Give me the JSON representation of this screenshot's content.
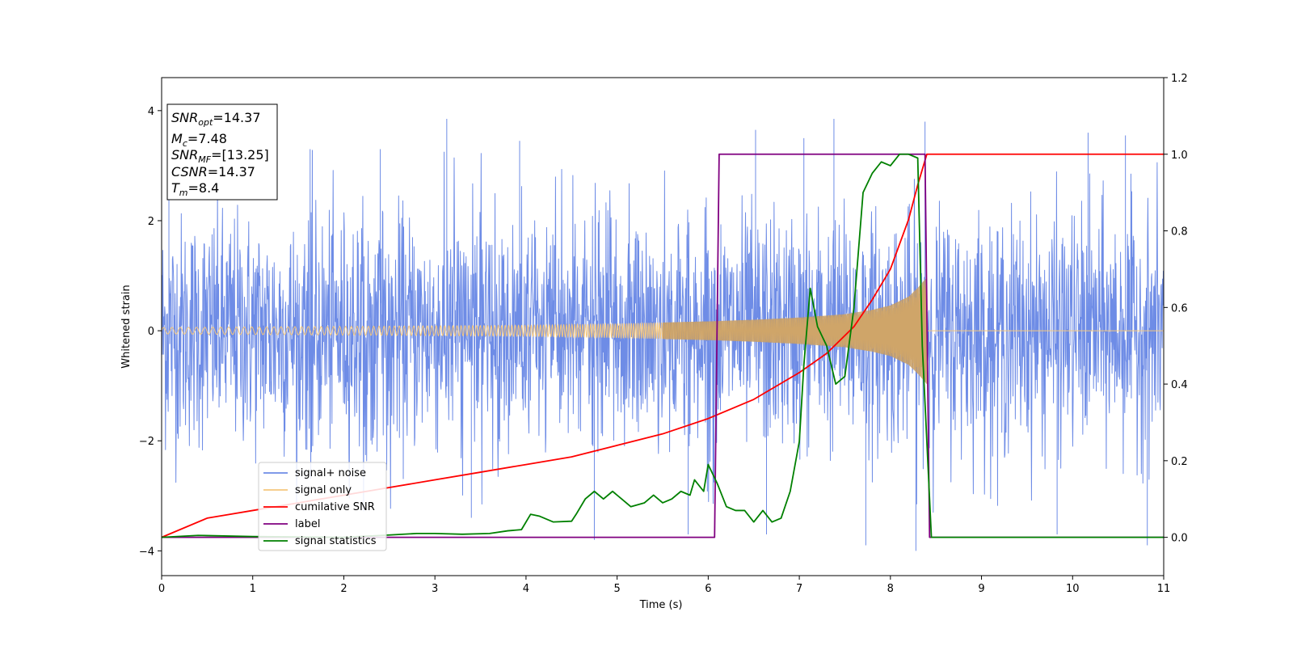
{
  "chart_data": {
    "type": "line",
    "title": "",
    "xlabel": "Time (s)",
    "ylabel": "Whitened strain",
    "xlim": [
      0,
      11
    ],
    "ylim_left": [
      -4.45,
      4.6
    ],
    "ylim_right": [
      -0.1,
      1.2
    ],
    "x_ticks": [
      "0",
      "1",
      "2",
      "3",
      "4",
      "5",
      "6",
      "7",
      "8",
      "9",
      "10",
      "11"
    ],
    "y_left_ticks": [
      "4",
      "2",
      "0",
      "−2",
      "−4"
    ],
    "y_left_tick_values": [
      4,
      2,
      0,
      -2,
      -4
    ],
    "y_right_ticks": [
      "1.2",
      "1.0",
      "0.8",
      "0.6",
      "0.4",
      "0.2",
      "0.0"
    ],
    "y_right_tick_values": [
      1.2,
      1.0,
      0.8,
      0.6,
      0.4,
      0.2,
      0.0
    ],
    "grid": false,
    "legend_position": "lower-left",
    "info_box": {
      "snr_opt": {
        "base": "SNR",
        "sub": "opt",
        "rest": "=14.37"
      },
      "mc": {
        "base": "M",
        "sub": "c",
        "rest": "=7.48"
      },
      "snr_mf": {
        "base": "SNR",
        "sub": "MF",
        "rest": "=[13.25]"
      },
      "csnr": {
        "base": "CSNR",
        "sub": "",
        "rest": "=14.37"
      },
      "tm": {
        "base": "T",
        "sub": "m",
        "rest": "=8.4"
      }
    },
    "series": [
      {
        "name": "signal+ noise",
        "axis": "left",
        "color": "#6e8ce6",
        "noise_sigma": 1.0,
        "noise_envelope": 3.3,
        "spikes": [
          [
            0.08,
            3.4
          ],
          [
            1.63,
            3.3
          ],
          [
            2.4,
            3.3
          ],
          [
            3.13,
            3.85
          ],
          [
            3.4,
            -3.4
          ],
          [
            3.93,
            3.45
          ],
          [
            4.75,
            -3.8
          ],
          [
            5.78,
            -3.7
          ],
          [
            6.52,
            3.65
          ],
          [
            6.64,
            -3.7
          ],
          [
            7.05,
            3.5
          ],
          [
            7.38,
            3.85
          ],
          [
            7.73,
            -3.9
          ],
          [
            8.28,
            -4.0
          ],
          [
            8.38,
            3.8
          ],
          [
            9.83,
            -3.7
          ],
          [
            10.17,
            3.6
          ],
          [
            10.58,
            3.55
          ],
          [
            10.82,
            -3.9
          ]
        ]
      },
      {
        "name": "signal only",
        "axis": "left",
        "color": "#f5c77e",
        "amplitude_points": [
          [
            0,
            0.06
          ],
          [
            1,
            0.07
          ],
          [
            2,
            0.08
          ],
          [
            3,
            0.09
          ],
          [
            4,
            0.1
          ],
          [
            5,
            0.13
          ],
          [
            6,
            0.17
          ],
          [
            6.5,
            0.2
          ],
          [
            7,
            0.24
          ],
          [
            7.5,
            0.3
          ],
          [
            7.8,
            0.38
          ],
          [
            8.0,
            0.46
          ],
          [
            8.2,
            0.62
          ],
          [
            8.3,
            0.78
          ],
          [
            8.4,
            0.97
          ]
        ],
        "end_time": 8.4
      },
      {
        "name": "cumilative SNR",
        "axis": "right",
        "color": "#ff0000",
        "points": [
          [
            0,
            0.0
          ],
          [
            0.5,
            0.05
          ],
          [
            1,
            0.07
          ],
          [
            1.5,
            0.09
          ],
          [
            2,
            0.11
          ],
          [
            2.5,
            0.13
          ],
          [
            3,
            0.15
          ],
          [
            3.5,
            0.17
          ],
          [
            4,
            0.19
          ],
          [
            4.5,
            0.21
          ],
          [
            5,
            0.24
          ],
          [
            5.5,
            0.27
          ],
          [
            6,
            0.31
          ],
          [
            6.5,
            0.36
          ],
          [
            7,
            0.43
          ],
          [
            7.3,
            0.48
          ],
          [
            7.6,
            0.55
          ],
          [
            7.8,
            0.62
          ],
          [
            8.0,
            0.7
          ],
          [
            8.2,
            0.83
          ],
          [
            8.3,
            0.92
          ],
          [
            8.4,
            1.0
          ],
          [
            11,
            1.0
          ]
        ]
      },
      {
        "name": "label",
        "axis": "right",
        "color": "#800080",
        "points": [
          [
            0,
            0.0
          ],
          [
            6.07,
            0.0
          ],
          [
            6.12,
            1.0
          ],
          [
            8.38,
            1.0
          ],
          [
            8.43,
            0.0
          ],
          [
            11,
            0.0
          ]
        ]
      },
      {
        "name": "signal statistics",
        "axis": "right",
        "color": "#008000",
        "points": [
          [
            0,
            0.0
          ],
          [
            0.4,
            0.005
          ],
          [
            1.0,
            0.002
          ],
          [
            2.0,
            0.0
          ],
          [
            2.5,
            0.006
          ],
          [
            2.8,
            0.01
          ],
          [
            3.0,
            0.01
          ],
          [
            3.3,
            0.008
          ],
          [
            3.6,
            0.01
          ],
          [
            3.8,
            0.017
          ],
          [
            3.95,
            0.02
          ],
          [
            4.05,
            0.06
          ],
          [
            4.15,
            0.055
          ],
          [
            4.3,
            0.04
          ],
          [
            4.5,
            0.042
          ],
          [
            4.55,
            0.06
          ],
          [
            4.65,
            0.1
          ],
          [
            4.75,
            0.12
          ],
          [
            4.85,
            0.1
          ],
          [
            4.95,
            0.12
          ],
          [
            5.05,
            0.1
          ],
          [
            5.15,
            0.08
          ],
          [
            5.3,
            0.09
          ],
          [
            5.4,
            0.11
          ],
          [
            5.5,
            0.09
          ],
          [
            5.6,
            0.1
          ],
          [
            5.7,
            0.12
          ],
          [
            5.8,
            0.11
          ],
          [
            5.85,
            0.15
          ],
          [
            5.95,
            0.12
          ],
          [
            6.0,
            0.19
          ],
          [
            6.1,
            0.14
          ],
          [
            6.2,
            0.08
          ],
          [
            6.3,
            0.07
          ],
          [
            6.4,
            0.07
          ],
          [
            6.5,
            0.04
          ],
          [
            6.6,
            0.07
          ],
          [
            6.7,
            0.04
          ],
          [
            6.8,
            0.05
          ],
          [
            6.9,
            0.12
          ],
          [
            7.0,
            0.25
          ],
          [
            7.05,
            0.45
          ],
          [
            7.12,
            0.65
          ],
          [
            7.2,
            0.55
          ],
          [
            7.3,
            0.5
          ],
          [
            7.4,
            0.4
          ],
          [
            7.5,
            0.42
          ],
          [
            7.6,
            0.6
          ],
          [
            7.7,
            0.9
          ],
          [
            7.8,
            0.95
          ],
          [
            7.9,
            0.98
          ],
          [
            8.0,
            0.97
          ],
          [
            8.1,
            1.0
          ],
          [
            8.2,
            1.0
          ],
          [
            8.3,
            0.99
          ],
          [
            8.35,
            0.5
          ],
          [
            8.45,
            0.0
          ],
          [
            11,
            0.0
          ]
        ]
      }
    ]
  }
}
